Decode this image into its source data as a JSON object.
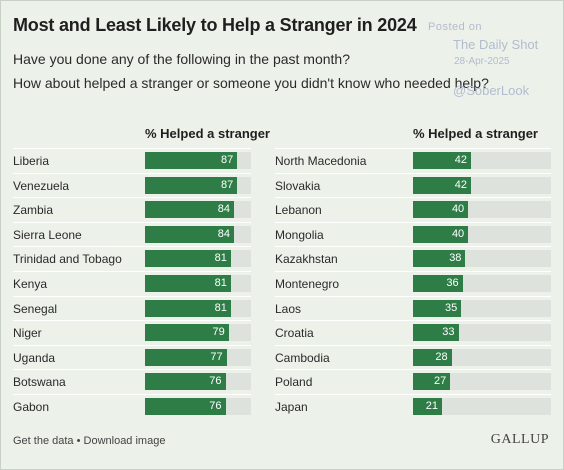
{
  "title": "Most and Least Likely to Help a Stranger in 2024",
  "subtitle_lines": [
    "Have you done any of the following in the past month?",
    "How about helped a stranger or someone you didn't know who needed help?"
  ],
  "watermark": {
    "posted": "Posted on",
    "source": "The Daily Shot",
    "date": "28-Apr-2025",
    "handle": "@SoberLook"
  },
  "footer": {
    "links": "Get the data • Download image",
    "brand": "GALLUP"
  },
  "colors": {
    "bar": "#2e7d46",
    "track": "#dde2dc",
    "background": "#ecf1ea"
  },
  "chart_data": [
    {
      "type": "bar",
      "orientation": "horizontal",
      "xlabel": "% Helped a stranger",
      "xlim": [
        0,
        100
      ],
      "categories": [
        "Liberia",
        "Venezuela",
        "Zambia",
        "Sierra Leone",
        "Trinidad and Tobago",
        "Kenya",
        "Senegal",
        "Niger",
        "Uganda",
        "Botswana",
        "Gabon"
      ],
      "values": [
        87,
        87,
        84,
        84,
        81,
        81,
        81,
        79,
        77,
        76,
        76
      ]
    },
    {
      "type": "bar",
      "orientation": "horizontal",
      "xlabel": "% Helped a stranger",
      "xlim": [
        0,
        100
      ],
      "categories": [
        "North Macedonia",
        "Slovakia",
        "Lebanon",
        "Mongolia",
        "Kazakhstan",
        "Montenegro",
        "Laos",
        "Croatia",
        "Cambodia",
        "Poland",
        "Japan"
      ],
      "values": [
        42,
        42,
        40,
        40,
        38,
        36,
        35,
        33,
        28,
        27,
        21
      ]
    }
  ]
}
